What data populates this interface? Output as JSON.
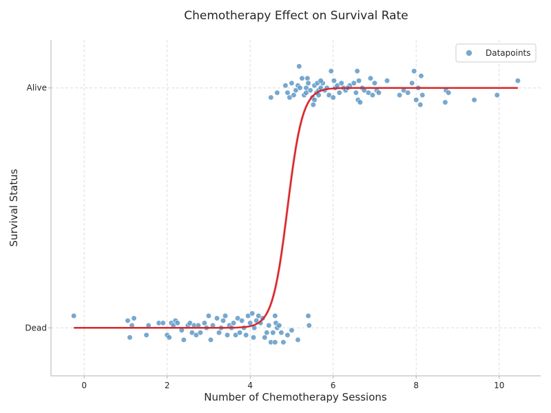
{
  "chart_data": {
    "type": "scatter",
    "title": "Chemotherapy Effect on Survival Rate",
    "xlabel": "Number of Chemotherapy Sessions",
    "ylabel": "Survival Status",
    "xlim": [
      -0.8,
      11.0
    ],
    "ylim": [
      -0.2,
      1.2
    ],
    "xticks": [
      0,
      2,
      4,
      6,
      8,
      10
    ],
    "yticks": [
      {
        "value": 0,
        "label": "Dead"
      },
      {
        "value": 1,
        "label": "Alive"
      }
    ],
    "grid": true,
    "legend": {
      "position": "top-right",
      "entries": [
        "Datapoints"
      ]
    },
    "colors": {
      "points": "#4a8bbf",
      "fit": "#d62728",
      "band": "#f4b8bb"
    },
    "series": [
      {
        "name": "Datapoints",
        "points": [
          {
            "x": -0.25,
            "y": 0.05
          },
          {
            "x": 1.05,
            "y": 0.03
          },
          {
            "x": 1.2,
            "y": 0.04
          },
          {
            "x": 1.1,
            "y": -0.04
          },
          {
            "x": 1.15,
            "y": 0.01
          },
          {
            "x": 1.5,
            "y": -0.03
          },
          {
            "x": 1.55,
            "y": 0.01
          },
          {
            "x": 1.8,
            "y": 0.02
          },
          {
            "x": 1.9,
            "y": 0.02
          },
          {
            "x": 2.0,
            "y": -0.03
          },
          {
            "x": 2.05,
            "y": -0.04
          },
          {
            "x": 2.1,
            "y": 0.02
          },
          {
            "x": 2.15,
            "y": 0.01
          },
          {
            "x": 2.2,
            "y": 0.03
          },
          {
            "x": 2.25,
            "y": 0.02
          },
          {
            "x": 2.35,
            "y": -0.01
          },
          {
            "x": 2.4,
            "y": -0.05
          },
          {
            "x": 2.5,
            "y": 0.01
          },
          {
            "x": 2.55,
            "y": 0.02
          },
          {
            "x": 2.6,
            "y": -0.02
          },
          {
            "x": 2.65,
            "y": 0.01
          },
          {
            "x": 2.7,
            "y": -0.03
          },
          {
            "x": 2.75,
            "y": 0.01
          },
          {
            "x": 2.8,
            "y": -0.02
          },
          {
            "x": 2.9,
            "y": 0.02
          },
          {
            "x": 2.95,
            "y": 0.0
          },
          {
            "x": 3.0,
            "y": 0.05
          },
          {
            "x": 3.05,
            "y": -0.05
          },
          {
            "x": 3.1,
            "y": 0.01
          },
          {
            "x": 3.2,
            "y": 0.04
          },
          {
            "x": 3.25,
            "y": -0.02
          },
          {
            "x": 3.3,
            "y": 0.0
          },
          {
            "x": 3.35,
            "y": 0.03
          },
          {
            "x": 3.4,
            "y": 0.05
          },
          {
            "x": 3.45,
            "y": -0.03
          },
          {
            "x": 3.5,
            "y": 0.01
          },
          {
            "x": 3.55,
            "y": 0.0
          },
          {
            "x": 3.6,
            "y": 0.02
          },
          {
            "x": 3.65,
            "y": -0.03
          },
          {
            "x": 3.7,
            "y": 0.04
          },
          {
            "x": 3.75,
            "y": -0.02
          },
          {
            "x": 3.8,
            "y": 0.03
          },
          {
            "x": 3.85,
            "y": 0.0
          },
          {
            "x": 3.9,
            "y": -0.03
          },
          {
            "x": 3.95,
            "y": 0.05
          },
          {
            "x": 4.0,
            "y": 0.02
          },
          {
            "x": 4.05,
            "y": 0.06
          },
          {
            "x": 4.08,
            "y": -0.04
          },
          {
            "x": 4.1,
            "y": 0.0
          },
          {
            "x": 4.15,
            "y": 0.03
          },
          {
            "x": 4.2,
            "y": 0.05
          },
          {
            "x": 4.25,
            "y": 0.02
          },
          {
            "x": 4.3,
            "y": 0.04
          },
          {
            "x": 4.35,
            "y": -0.04
          },
          {
            "x": 4.4,
            "y": -0.02
          },
          {
            "x": 4.45,
            "y": 0.01
          },
          {
            "x": 4.5,
            "y": -0.06
          },
          {
            "x": 4.55,
            "y": -0.02
          },
          {
            "x": 4.6,
            "y": -0.06
          },
          {
            "x": 4.62,
            "y": 0.02
          },
          {
            "x": 4.65,
            "y": 0.0
          },
          {
            "x": 4.7,
            "y": 0.01
          },
          {
            "x": 4.75,
            "y": -0.02
          },
          {
            "x": 4.8,
            "y": -0.06
          },
          {
            "x": 4.9,
            "y": -0.03
          },
          {
            "x": 5.0,
            "y": -0.01
          },
          {
            "x": 5.15,
            "y": -0.05
          },
          {
            "x": 5.4,
            "y": 0.05
          },
          {
            "x": 5.42,
            "y": 0.01
          },
          {
            "x": 4.6,
            "y": 0.05
          },
          {
            "x": 4.5,
            "y": 0.96
          },
          {
            "x": 4.65,
            "y": 0.98
          },
          {
            "x": 4.85,
            "y": 1.01
          },
          {
            "x": 4.9,
            "y": 0.98
          },
          {
            "x": 4.95,
            "y": 0.96
          },
          {
            "x": 5.0,
            "y": 1.02
          },
          {
            "x": 5.05,
            "y": 0.97
          },
          {
            "x": 5.1,
            "y": 0.99
          },
          {
            "x": 5.15,
            "y": 1.01
          },
          {
            "x": 5.18,
            "y": 1.09
          },
          {
            "x": 5.2,
            "y": 1.0
          },
          {
            "x": 5.25,
            "y": 1.04
          },
          {
            "x": 5.3,
            "y": 0.97
          },
          {
            "x": 5.35,
            "y": 1.0
          },
          {
            "x": 5.38,
            "y": 1.04
          },
          {
            "x": 5.4,
            "y": 1.02
          },
          {
            "x": 5.45,
            "y": 0.99
          },
          {
            "x": 5.5,
            "y": 0.96
          },
          {
            "x": 5.52,
            "y": 0.93
          },
          {
            "x": 5.55,
            "y": 1.01
          },
          {
            "x": 5.6,
            "y": 0.98
          },
          {
            "x": 5.62,
            "y": 1.02
          },
          {
            "x": 5.65,
            "y": 0.99
          },
          {
            "x": 5.7,
            "y": 1.0
          },
          {
            "x": 5.75,
            "y": 1.02
          },
          {
            "x": 5.8,
            "y": 0.99
          },
          {
            "x": 5.85,
            "y": 1.0
          },
          {
            "x": 5.9,
            "y": 0.97
          },
          {
            "x": 5.95,
            "y": 1.07
          },
          {
            "x": 6.0,
            "y": 0.96
          },
          {
            "x": 6.02,
            "y": 1.03
          },
          {
            "x": 6.05,
            "y": 1.0
          },
          {
            "x": 6.1,
            "y": 1.01
          },
          {
            "x": 6.15,
            "y": 0.98
          },
          {
            "x": 6.2,
            "y": 1.02
          },
          {
            "x": 6.25,
            "y": 1.0
          },
          {
            "x": 6.3,
            "y": 0.99
          },
          {
            "x": 6.4,
            "y": 1.01
          },
          {
            "x": 6.5,
            "y": 1.02
          },
          {
            "x": 6.55,
            "y": 0.98
          },
          {
            "x": 6.58,
            "y": 1.07
          },
          {
            "x": 6.6,
            "y": 0.95
          },
          {
            "x": 6.62,
            "y": 1.03
          },
          {
            "x": 6.65,
            "y": 0.94
          },
          {
            "x": 6.7,
            "y": 1.0
          },
          {
            "x": 6.75,
            "y": 0.99
          },
          {
            "x": 6.85,
            "y": 0.98
          },
          {
            "x": 6.9,
            "y": 1.04
          },
          {
            "x": 6.95,
            "y": 0.97
          },
          {
            "x": 7.0,
            "y": 1.02
          },
          {
            "x": 7.05,
            "y": 0.99
          },
          {
            "x": 7.1,
            "y": 0.98
          },
          {
            "x": 7.3,
            "y": 1.03
          },
          {
            "x": 7.6,
            "y": 0.97
          },
          {
            "x": 7.7,
            "y": 0.99
          },
          {
            "x": 7.8,
            "y": 0.98
          },
          {
            "x": 7.9,
            "y": 1.02
          },
          {
            "x": 7.95,
            "y": 1.07
          },
          {
            "x": 8.0,
            "y": 0.95
          },
          {
            "x": 8.05,
            "y": 1.0
          },
          {
            "x": 8.1,
            "y": 0.93
          },
          {
            "x": 8.12,
            "y": 1.05
          },
          {
            "x": 8.15,
            "y": 0.97
          },
          {
            "x": 8.7,
            "y": 0.94
          },
          {
            "x": 8.72,
            "y": 0.99
          },
          {
            "x": 8.78,
            "y": 0.98
          },
          {
            "x": 9.4,
            "y": 0.95
          },
          {
            "x": 9.95,
            "y": 0.97
          },
          {
            "x": 10.45,
            "y": 1.03
          },
          {
            "x": 5.55,
            "y": 0.95
          },
          {
            "x": 5.65,
            "y": 0.97
          },
          {
            "x": 5.7,
            "y": 1.03
          },
          {
            "x": 5.35,
            "y": 0.98
          },
          {
            "x": 6.35,
            "y": 1.0
          }
        ]
      },
      {
        "name": "",
        "type": "line",
        "x0": 4.9,
        "k": 5.5,
        "xrange": [
          -0.25,
          10.45
        ],
        "band_halfwidth": 0.05
      }
    ]
  }
}
